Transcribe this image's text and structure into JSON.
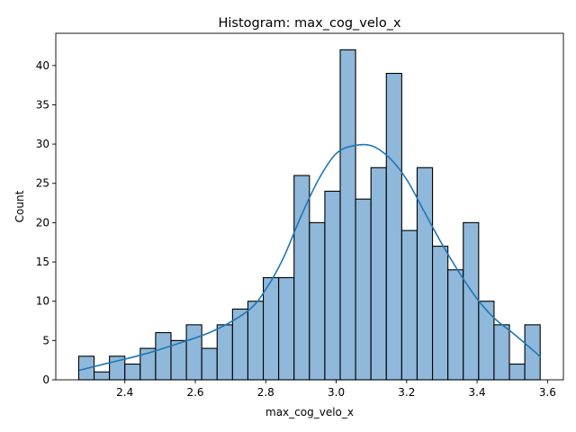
{
  "chart_data": {
    "type": "bar",
    "subtype": "histogram",
    "title": "Histogram: max_cog_velo_x",
    "xlabel": "max_cog_velo_x",
    "ylabel": "Count",
    "bin_start": 2.269,
    "bin_width": 0.04367,
    "counts": [
      3,
      1,
      3,
      2,
      4,
      6,
      5,
      7,
      4,
      7,
      9,
      10,
      13,
      13,
      26,
      20,
      24,
      42,
      23,
      27,
      39,
      19,
      27,
      17,
      14,
      20,
      10,
      7,
      2,
      7
    ],
    "kde": {
      "x": [
        2.27,
        2.35,
        2.45,
        2.55,
        2.65,
        2.75,
        2.8,
        2.85,
        2.9,
        2.95,
        3.0,
        3.05,
        3.1,
        3.15,
        3.2,
        3.25,
        3.3,
        3.35,
        3.4,
        3.45,
        3.5,
        3.55,
        3.58
      ],
      "y": [
        1.2,
        2.1,
        3.2,
        4.6,
        6.2,
        8.8,
        11.5,
        15.5,
        20.8,
        25.5,
        28.8,
        29.8,
        29.8,
        28.3,
        25.5,
        21.4,
        17.3,
        13.6,
        10.3,
        7.8,
        6.0,
        4.1,
        2.9
      ]
    },
    "xlim": [
      2.204,
      3.645
    ],
    "ylim": [
      0,
      44.1
    ],
    "xticks": [
      "2.4",
      "2.6",
      "2.8",
      "3.0",
      "3.2",
      "3.4",
      "3.6"
    ],
    "xtick_values": [
      2.4,
      2.6,
      2.8,
      3.0,
      3.2,
      3.4,
      3.6
    ],
    "yticks": [
      "0",
      "5",
      "10",
      "15",
      "20",
      "25",
      "30",
      "35",
      "40"
    ],
    "ytick_values": [
      0,
      5,
      10,
      15,
      20,
      25,
      30,
      35,
      40
    ],
    "grid": false,
    "colors": {
      "bar_fill": "#8fb8da",
      "bar_edge": "#000000",
      "kde_line": "#1f77b4"
    }
  }
}
